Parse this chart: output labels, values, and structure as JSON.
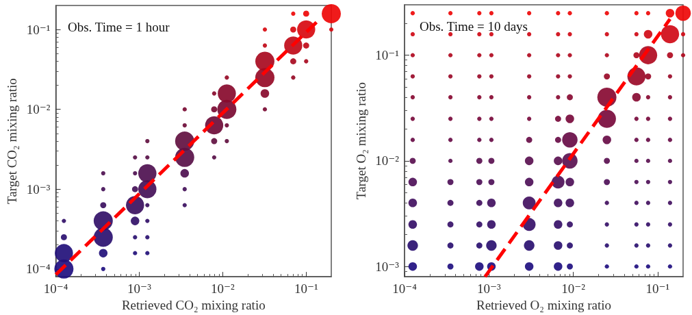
{
  "chart_data": [
    {
      "type": "bubble",
      "xlabel": "Retrieved CO₂ mixing ratio",
      "ylabel": "Target CO₂ mixing ratio",
      "annotations": [
        "Obs. Time = 1 hour"
      ],
      "log": "xy",
      "grid": false,
      "marker": "circle",
      "xlim": [
        0.0001,
        0.2
      ],
      "ylim": [
        8e-05,
        0.2
      ],
      "xticks": [
        {
          "value": 0.0001,
          "label": "10⁻⁴"
        },
        {
          "value": 0.001,
          "label": "10⁻³"
        },
        {
          "value": 0.01,
          "label": "10⁻²"
        },
        {
          "value": 0.1,
          "label": "10⁻¹"
        }
      ],
      "yticks": [
        {
          "value": 0.0001,
          "label": "10⁻⁴"
        },
        {
          "value": 0.001,
          "label": "10⁻³"
        },
        {
          "value": 0.01,
          "label": "10⁻²"
        },
        {
          "value": 0.1,
          "label": "10⁻¹"
        }
      ],
      "series": [
        {
          "color": "#1f0f80",
          "x": [
            0.000125,
            0.00037
          ],
          "values": [
            0.0001,
            0.0001
          ],
          "sizes": [
            1,
            0.05
          ]
        },
        {
          "color": "#22107a",
          "x": [
            0.000125,
            0.00037,
            0.00089,
            0.00125
          ],
          "values": [
            0.000158,
            0.000158,
            0.000158,
            0.000158
          ],
          "sizes": [
            0.9,
            0.2,
            0.05,
            0.05
          ]
        },
        {
          "color": "#2a1070",
          "x": [
            0.000125,
            0.00037,
            0.00089,
            0.00125
          ],
          "values": [
            0.00025,
            0.00025,
            0.00025,
            0.00025
          ],
          "sizes": [
            0.1,
            1,
            0.05,
            0.05
          ]
        },
        {
          "color": "#321068",
          "x": [
            0.000125,
            0.00037,
            0.00089,
            0.00125
          ],
          "values": [
            0.0004,
            0.0004,
            0.0004,
            0.0004
          ],
          "sizes": [
            0.05,
            1,
            0.2,
            0.05
          ]
        },
        {
          "color": "#3b1060",
          "x": [
            0.00037,
            0.00089,
            0.00125,
            0.0035
          ],
          "values": [
            0.00063,
            0.00063,
            0.00063,
            0.00063
          ],
          "sizes": [
            0.1,
            0.9,
            0.05,
            0.05
          ]
        },
        {
          "color": "#441058",
          "x": [
            0.00037,
            0.00089,
            0.00125,
            0.0035
          ],
          "values": [
            0.001,
            0.001,
            0.001,
            0.001
          ],
          "sizes": [
            0.05,
            0.1,
            0.9,
            0.05
          ]
        },
        {
          "color": "#4e1050",
          "x": [
            0.00037,
            0.00089,
            0.00125,
            0.0035
          ],
          "values": [
            0.00158,
            0.00158,
            0.00158,
            0.00158
          ],
          "sizes": [
            0.05,
            0.05,
            0.9,
            0.2
          ]
        },
        {
          "color": "#581048",
          "x": [
            0.00089,
            0.00125,
            0.0035,
            0.0079
          ],
          "values": [
            0.0025,
            0.0025,
            0.0025,
            0.0025
          ],
          "sizes": [
            0.05,
            0.05,
            1,
            0.05
          ]
        },
        {
          "color": "#621040",
          "x": [
            0.00125,
            0.0035,
            0.0079,
            0.0112
          ],
          "values": [
            0.004,
            0.004,
            0.004,
            0.004
          ],
          "sizes": [
            0.05,
            1,
            0.1,
            0.05
          ]
        },
        {
          "color": "#6e0c38",
          "x": [
            0.0035,
            0.0079,
            0.0112
          ],
          "values": [
            0.0063,
            0.0063,
            0.0063
          ],
          "sizes": [
            0.05,
            0.9,
            0.05
          ]
        },
        {
          "color": "#7a0a32",
          "x": [
            0.0035,
            0.0079,
            0.0112,
            0.032
          ],
          "values": [
            0.01,
            0.01,
            0.01,
            0.01
          ],
          "sizes": [
            0.05,
            0.1,
            1,
            0.05
          ]
        },
        {
          "color": "#880a2c",
          "x": [
            0.0079,
            0.0112,
            0.032
          ],
          "values": [
            0.0158,
            0.0158,
            0.0158
          ],
          "sizes": [
            0.05,
            0.9,
            0.2
          ]
        },
        {
          "color": "#960a26",
          "x": [
            0.0112,
            0.032,
            0.07
          ],
          "values": [
            0.025,
            0.025,
            0.025
          ],
          "sizes": [
            0.05,
            1,
            0.05
          ]
        },
        {
          "color": "#a80a20",
          "x": [
            0.032,
            0.07,
            0.1
          ],
          "values": [
            0.04,
            0.04,
            0.04
          ],
          "sizes": [
            1,
            0.1,
            0.05
          ]
        },
        {
          "color": "#c00a18",
          "x": [
            0.032,
            0.07,
            0.1
          ],
          "values": [
            0.063,
            0.063,
            0.063
          ],
          "sizes": [
            0.05,
            0.9,
            0.1
          ]
        },
        {
          "color": "#d80a10",
          "x": [
            0.032,
            0.07,
            0.1,
            0.2
          ],
          "values": [
            0.1,
            0.1,
            0.1,
            0.1
          ],
          "sizes": [
            0.05,
            0.1,
            0.9,
            0.05
          ]
        },
        {
          "color": "#ee0808",
          "x": [
            0.07,
            0.1,
            0.2
          ],
          "values": [
            0.158,
            0.158,
            0.158
          ],
          "sizes": [
            0.05,
            0.1,
            1
          ]
        },
        {
          "type": "line",
          "line_style": "dashed",
          "marker": "none",
          "color": "#ff0000",
          "x": [
            0.0001,
            0.14
          ],
          "values": [
            8.5e-05,
            0.13
          ]
        }
      ]
    },
    {
      "type": "bubble",
      "xlabel": "Retrieved O₂ mixing ratio",
      "ylabel": "Target O₂ mixing ratio",
      "annotations": [
        "Obs. Time = 10 days"
      ],
      "log": "xy",
      "grid": false,
      "marker": "circle",
      "xlim": [
        0.0001,
        0.2
      ],
      "ylim": [
        0.0008,
        0.3
      ],
      "xticks": [
        {
          "value": 0.0001,
          "label": "10⁻⁴"
        },
        {
          "value": 0.001,
          "label": "10⁻³"
        },
        {
          "value": 0.01,
          "label": "10⁻²"
        },
        {
          "value": 0.1,
          "label": "10⁻¹"
        }
      ],
      "yticks": [
        {
          "value": 0.001,
          "label": "10⁻³"
        },
        {
          "value": 0.01,
          "label": "10⁻²"
        },
        {
          "value": 0.1,
          "label": "10⁻¹"
        }
      ],
      "series": [
        {
          "color": "#1f0f80",
          "x": [
            0.000125,
            0.00035,
            0.00077,
            0.00107,
            0.003,
            0.0066,
            0.0091,
            0.025,
            0.056,
            0.077,
            0.14
          ],
          "values": [
            0.001,
            0.001,
            0.001,
            0.001,
            0.001,
            0.001,
            0.001,
            0.001,
            0.001,
            0.001,
            0.001
          ],
          "sizes": [
            0.2,
            0.1,
            0.2,
            0.2,
            0.2,
            0.2,
            0.1,
            0.05,
            0.05,
            0.05,
            0.05
          ]
        },
        {
          "color": "#2a1070",
          "x": [
            0.000125,
            0.00035,
            0.00077,
            0.00107,
            0.003,
            0.0066,
            0.0091,
            0.025,
            0.056,
            0.077,
            0.14
          ],
          "values": [
            0.00158,
            0.00158,
            0.00158,
            0.00158,
            0.00158,
            0.00158,
            0.00158,
            0.00158,
            0.00158,
            0.00158,
            0.00158
          ],
          "sizes": [
            0.3,
            0.1,
            0.1,
            0.3,
            0.3,
            0.2,
            0.1,
            0.05,
            0.05,
            0.05,
            0.05
          ]
        },
        {
          "color": "#361068",
          "x": [
            0.000125,
            0.00035,
            0.00077,
            0.00107,
            0.003,
            0.0066,
            0.0091,
            0.025,
            0.056,
            0.077,
            0.14
          ],
          "values": [
            0.0025,
            0.0025,
            0.0025,
            0.0025,
            0.0025,
            0.0025,
            0.0025,
            0.0025,
            0.0025,
            0.0025,
            0.0025
          ],
          "sizes": [
            0.2,
            0.1,
            0.1,
            0.2,
            0.45,
            0.2,
            0.1,
            0.05,
            0.05,
            0.05,
            0.05
          ]
        },
        {
          "color": "#421060",
          "x": [
            0.000125,
            0.00035,
            0.00077,
            0.00107,
            0.003,
            0.0066,
            0.0091,
            0.025,
            0.056,
            0.077,
            0.14
          ],
          "values": [
            0.004,
            0.004,
            0.004,
            0.004,
            0.004,
            0.004,
            0.004,
            0.004,
            0.004,
            0.004,
            0.004
          ],
          "sizes": [
            0.2,
            0.1,
            0.1,
            0.2,
            0.45,
            0.2,
            0.2,
            0.05,
            0.05,
            0.05,
            0.05
          ]
        },
        {
          "color": "#4e1058",
          "x": [
            0.000125,
            0.00035,
            0.00077,
            0.00107,
            0.003,
            0.0066,
            0.0091,
            0.025,
            0.056,
            0.077,
            0.14
          ],
          "values": [
            0.0063,
            0.0063,
            0.0063,
            0.0063,
            0.0063,
            0.0063,
            0.0063,
            0.0063,
            0.0063,
            0.0063,
            0.0063
          ],
          "sizes": [
            0.2,
            0.1,
            0.1,
            0.1,
            0.2,
            0.45,
            0.2,
            0.1,
            0.05,
            0.05,
            0.05
          ]
        },
        {
          "color": "#5a1050",
          "x": [
            0.000125,
            0.00035,
            0.00077,
            0.00107,
            0.003,
            0.0066,
            0.0091,
            0.025,
            0.056,
            0.077,
            0.14
          ],
          "values": [
            0.01,
            0.01,
            0.01,
            0.01,
            0.01,
            0.01,
            0.01,
            0.01,
            0.01,
            0.01,
            0.01
          ],
          "sizes": [
            0.1,
            0.05,
            0.1,
            0.1,
            0.2,
            0.2,
            0.65,
            0.1,
            0.05,
            0.05,
            0.05
          ]
        },
        {
          "color": "#680c46",
          "x": [
            0.000125,
            0.00035,
            0.00077,
            0.00107,
            0.003,
            0.0066,
            0.0091,
            0.025,
            0.056,
            0.077,
            0.14
          ],
          "values": [
            0.0158,
            0.0158,
            0.0158,
            0.0158,
            0.0158,
            0.0158,
            0.0158,
            0.0158,
            0.0158,
            0.0158,
            0.0158
          ],
          "sizes": [
            0.05,
            0.05,
            0.05,
            0.05,
            0.1,
            0.1,
            0.65,
            0.2,
            0.05,
            0.05,
            0.05
          ]
        },
        {
          "color": "#780a3c",
          "x": [
            0.000125,
            0.00035,
            0.00077,
            0.00107,
            0.003,
            0.0066,
            0.0091,
            0.025,
            0.056,
            0.077,
            0.14
          ],
          "values": [
            0.025,
            0.025,
            0.025,
            0.025,
            0.025,
            0.025,
            0.025,
            0.025,
            0.025,
            0.025,
            0.025
          ],
          "sizes": [
            0.05,
            0.05,
            0.05,
            0.05,
            0.05,
            0.1,
            0.2,
            0.9,
            0.05,
            0.05,
            0.05
          ]
        },
        {
          "color": "#880a32",
          "x": [
            0.000125,
            0.00035,
            0.00077,
            0.00107,
            0.003,
            0.0066,
            0.0091,
            0.025,
            0.056,
            0.077,
            0.14
          ],
          "values": [
            0.04,
            0.04,
            0.04,
            0.04,
            0.04,
            0.04,
            0.04,
            0.04,
            0.04,
            0.04,
            0.04
          ],
          "sizes": [
            0.05,
            0.05,
            0.05,
            0.05,
            0.05,
            0.05,
            0.1,
            1,
            0.2,
            0.05,
            0.05
          ]
        },
        {
          "color": "#9a0a28",
          "x": [
            0.000125,
            0.00035,
            0.00077,
            0.00107,
            0.003,
            0.0066,
            0.0091,
            0.025,
            0.056,
            0.077,
            0.14
          ],
          "values": [
            0.063,
            0.063,
            0.063,
            0.063,
            0.063,
            0.063,
            0.063,
            0.063,
            0.063,
            0.063,
            0.063
          ],
          "sizes": [
            0.05,
            0.05,
            0.05,
            0.05,
            0.05,
            0.05,
            0.05,
            0.1,
            0.9,
            0.1,
            0.05
          ]
        },
        {
          "color": "#b00a20",
          "x": [
            0.000125,
            0.00035,
            0.00077,
            0.00107,
            0.003,
            0.0066,
            0.0091,
            0.025,
            0.056,
            0.077,
            0.14,
            0.2
          ],
          "values": [
            0.1,
            0.1,
            0.1,
            0.1,
            0.1,
            0.1,
            0.1,
            0.1,
            0.1,
            0.1,
            0.1,
            0.1
          ],
          "sizes": [
            0.05,
            0.05,
            0.05,
            0.05,
            0.05,
            0.05,
            0.05,
            0.05,
            0.1,
            0.9,
            0.1,
            0.05
          ]
        },
        {
          "color": "#d00a16",
          "x": [
            0.000125,
            0.00035,
            0.00077,
            0.00107,
            0.003,
            0.0066,
            0.0091,
            0.025,
            0.056,
            0.077,
            0.14,
            0.2
          ],
          "values": [
            0.158,
            0.158,
            0.158,
            0.158,
            0.158,
            0.158,
            0.158,
            0.158,
            0.158,
            0.158,
            0.158,
            0.158
          ],
          "sizes": [
            0.05,
            0.05,
            0.05,
            0.05,
            0.05,
            0.05,
            0.05,
            0.05,
            0.05,
            0.2,
            0.9,
            0.05
          ]
        },
        {
          "color": "#ee0808",
          "x": [
            0.000125,
            0.00035,
            0.00077,
            0.00107,
            0.003,
            0.0066,
            0.0091,
            0.025,
            0.056,
            0.077,
            0.14,
            0.2
          ],
          "values": [
            0.25,
            0.25,
            0.25,
            0.25,
            0.25,
            0.25,
            0.25,
            0.25,
            0.25,
            0.25,
            0.25,
            0.25
          ],
          "sizes": [
            0.05,
            0.05,
            0.05,
            0.05,
            0.05,
            0.05,
            0.05,
            0.05,
            0.05,
            0.05,
            0.2,
            0.65
          ]
        },
        {
          "type": "line",
          "line_style": "dashed",
          "marker": "none",
          "color": "#ff0000",
          "x": [
            0.0009,
            0.14
          ],
          "values": [
            0.0008,
            0.22
          ]
        }
      ]
    }
  ]
}
